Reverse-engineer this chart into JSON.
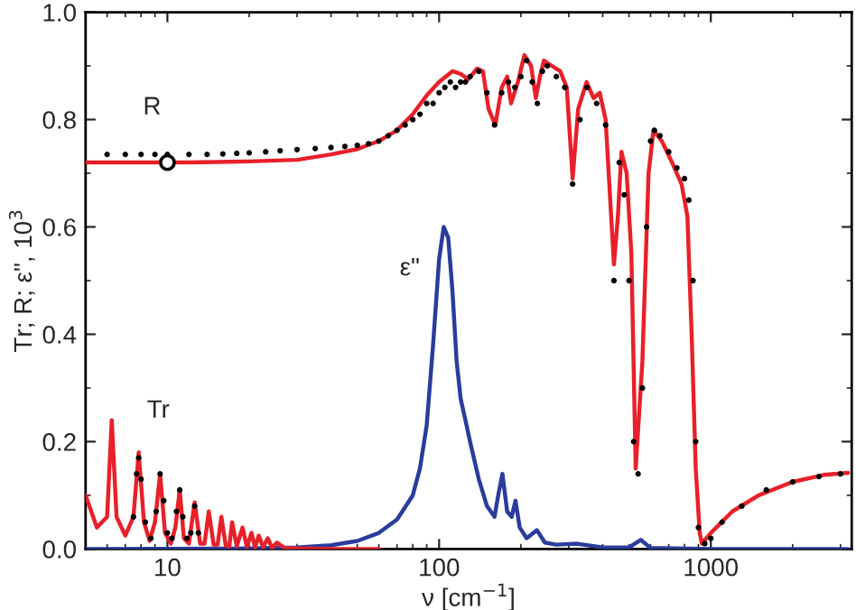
{
  "chart_data": {
    "type": "line",
    "xlabel": "ν [cm$^{−1}$]",
    "ylabel": "Tr; R; ε\", 10$^{3}$",
    "log": "x",
    "xlim": [
      5,
      3300
    ],
    "ylim": [
      0,
      1.0
    ],
    "xticks": [
      10,
      100,
      1000
    ],
    "yticks": [
      {
        "value": 0,
        "label": "0.0"
      },
      {
        "value": 0.2,
        "label": "0.2"
      },
      {
        "value": 0.4,
        "label": "0.4"
      },
      {
        "value": 0.6,
        "label": "0.6"
      },
      {
        "value": 0.8,
        "label": "0.8"
      },
      {
        "value": 1.0,
        "label": "1.0"
      }
    ],
    "grid": false,
    "legend": false,
    "annotations": [
      "R",
      "Tr",
      "ε\""
    ],
    "series": [
      {
        "type": "scatter",
        "color": "#000000",
        "x": [
          6,
          7,
          8,
          9,
          10,
          12,
          14,
          16,
          18,
          20,
          23,
          26,
          30,
          35,
          40,
          45,
          50,
          55,
          60,
          65,
          70,
          75,
          80,
          85,
          90,
          95,
          100,
          105,
          110,
          115,
          120,
          125,
          130,
          140,
          150,
          160,
          170,
          180,
          190,
          200,
          210,
          220,
          230,
          240,
          250,
          270,
          290,
          310,
          330,
          350,
          380,
          410,
          440,
          460,
          480,
          500,
          520,
          540,
          560,
          580,
          600,
          620,
          650,
          700,
          750,
          800,
          830,
          860,
          880,
          900,
          950,
          1000,
          1100,
          1300,
          1600,
          2000,
          2500,
          3000
        ],
        "values": [
          0.735,
          0.735,
          0.735,
          0.735,
          0.735,
          0.735,
          0.735,
          0.736,
          0.737,
          0.738,
          0.74,
          0.742,
          0.744,
          0.746,
          0.748,
          0.75,
          0.752,
          0.755,
          0.76,
          0.77,
          0.78,
          0.79,
          0.8,
          0.81,
          0.83,
          0.83,
          0.85,
          0.86,
          0.87,
          0.86,
          0.87,
          0.87,
          0.88,
          0.89,
          0.85,
          0.79,
          0.85,
          0.87,
          0.86,
          0.88,
          0.91,
          0.87,
          0.83,
          0.89,
          0.9,
          0.88,
          0.86,
          0.68,
          0.8,
          0.86,
          0.83,
          0.79,
          0.5,
          0.72,
          0.66,
          0.5,
          0.2,
          0.14,
          0.3,
          0.6,
          0.76,
          0.78,
          0.77,
          0.74,
          0.71,
          0.69,
          0.65,
          0.5,
          0.2,
          0.04,
          0.01,
          0.02,
          0.05,
          0.08,
          0.11,
          0.125,
          0.135,
          0.14
        ]
      },
      {
        "color": "#e8202a",
        "x": [
          5,
          8,
          12,
          20,
          30,
          40,
          50,
          60,
          70,
          80,
          90,
          100,
          112,
          120,
          128,
          138,
          145,
          152,
          161,
          170,
          178,
          184,
          195,
          206,
          218,
          227,
          235,
          243,
          260,
          279,
          295,
          310,
          325,
          349,
          370,
          390,
          410,
          440,
          455,
          469,
          490,
          510,
          529,
          560,
          590,
          615,
          660,
          720,
          780,
          820,
          850,
          880,
          910,
          927,
          1000,
          1200,
          1500,
          2000,
          2600,
          3200
        ],
        "values": [
          0.72,
          0.72,
          0.72,
          0.722,
          0.725,
          0.735,
          0.745,
          0.76,
          0.78,
          0.81,
          0.845,
          0.87,
          0.89,
          0.885,
          0.875,
          0.895,
          0.89,
          0.82,
          0.79,
          0.86,
          0.88,
          0.83,
          0.87,
          0.92,
          0.9,
          0.84,
          0.88,
          0.91,
          0.9,
          0.89,
          0.86,
          0.69,
          0.82,
          0.87,
          0.84,
          0.85,
          0.8,
          0.53,
          0.62,
          0.74,
          0.7,
          0.55,
          0.15,
          0.35,
          0.7,
          0.78,
          0.76,
          0.72,
          0.68,
          0.62,
          0.4,
          0.15,
          0.03,
          0.01,
          0.03,
          0.07,
          0.1,
          0.125,
          0.138,
          0.142
        ]
      },
      {
        "type": "scatter",
        "color": "#000000",
        "x": [
          7.5,
          7.7,
          7.84,
          8.0,
          8.3,
          8.7,
          9.1,
          9.4,
          9.7,
          10.0,
          10.4,
          10.8,
          11.1,
          11.4,
          11.8,
          12.2,
          12.6,
          13.0
        ],
        "values": [
          0.06,
          0.14,
          0.17,
          0.13,
          0.05,
          0.02,
          0.07,
          0.14,
          0.09,
          0.03,
          0.02,
          0.07,
          0.11,
          0.06,
          0.02,
          0.03,
          0.08,
          0.03
        ]
      },
      {
        "color": "#e8202a",
        "x": [
          5,
          5.5,
          6.0,
          6.24,
          6.5,
          7.0,
          7.5,
          7.84,
          8.2,
          8.6,
          9.0,
          9.4,
          9.8,
          10.3,
          10.7,
          11.1,
          11.5,
          12.0,
          12.6,
          13.2,
          13.7,
          14.2,
          14.8,
          15.3,
          15.8,
          16.4,
          16.9,
          17.3,
          18.0,
          18.9,
          19.6,
          20.4,
          21.0,
          21.7,
          22.5,
          23.4,
          24.3,
          25.3,
          27,
          30,
          40,
          60
        ],
        "values": [
          0.1,
          0.04,
          0.06,
          0.24,
          0.06,
          0.025,
          0.06,
          0.18,
          0.05,
          0.015,
          0.05,
          0.14,
          0.03,
          0.01,
          0.04,
          0.11,
          0.02,
          0.01,
          0.087,
          0.01,
          0.01,
          0.07,
          0.008,
          0.008,
          0.06,
          0.006,
          0.005,
          0.05,
          0.005,
          0.04,
          0.004,
          0.03,
          0.003,
          0.025,
          0.003,
          0.02,
          0.002,
          0.012,
          0.002,
          0.001,
          0,
          0
        ]
      },
      {
        "color": "#2b3c9c",
        "x": [
          5,
          20,
          30,
          40,
          50,
          60,
          70,
          80,
          85,
          90,
          95,
          100,
          104,
          108,
          112,
          116,
          120,
          125,
          130,
          140,
          150,
          160,
          165,
          171,
          178,
          185,
          191,
          198,
          210,
          229,
          245,
          270,
          320,
          400,
          500,
          552,
          600,
          1000,
          3200
        ],
        "values": [
          0,
          0.001,
          0.003,
          0.007,
          0.015,
          0.03,
          0.055,
          0.1,
          0.15,
          0.23,
          0.38,
          0.54,
          0.6,
          0.58,
          0.48,
          0.35,
          0.28,
          0.24,
          0.2,
          0.13,
          0.08,
          0.06,
          0.1,
          0.14,
          0.07,
          0.06,
          0.09,
          0.04,
          0.02,
          0.035,
          0.012,
          0.008,
          0.01,
          0.003,
          0.003,
          0.017,
          0.002,
          0,
          0
        ]
      },
      {
        "type": "scatter",
        "color": "#000000",
        "x": [
          10
        ],
        "values": [
          0.72
        ]
      }
    ]
  }
}
